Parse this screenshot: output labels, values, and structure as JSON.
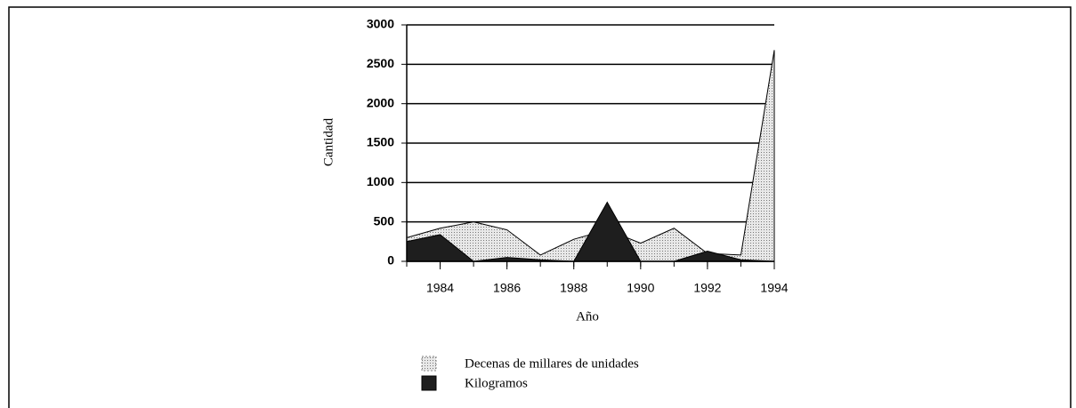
{
  "chart_data": {
    "type": "area",
    "x_label": "Año",
    "y_label": "Cantidad",
    "x": [
      1983,
      1984,
      1985,
      1986,
      1987,
      1988,
      1989,
      1990,
      1991,
      1992,
      1993,
      1994
    ],
    "series": [
      {
        "name": "Decenas de millares  de unidades",
        "color": "#d9d9d9",
        "values": [
          300,
          420,
          500,
          400,
          80,
          280,
          400,
          230,
          420,
          100,
          80,
          2680
        ]
      },
      {
        "name": "Kilogramos",
        "color": "#1e1e1e",
        "values": [
          250,
          340,
          0,
          50,
          20,
          0,
          750,
          0,
          0,
          130,
          20,
          0
        ]
      }
    ],
    "xlim": [
      1983,
      1994
    ],
    "xticks": [
      1984,
      1986,
      1988,
      1990,
      1992,
      1994
    ],
    "ylim": [
      0,
      3000
    ],
    "yticks": [
      0,
      500,
      1000,
      1500,
      2000,
      2500,
      3000
    ],
    "grid": true,
    "legend": "bottom"
  }
}
